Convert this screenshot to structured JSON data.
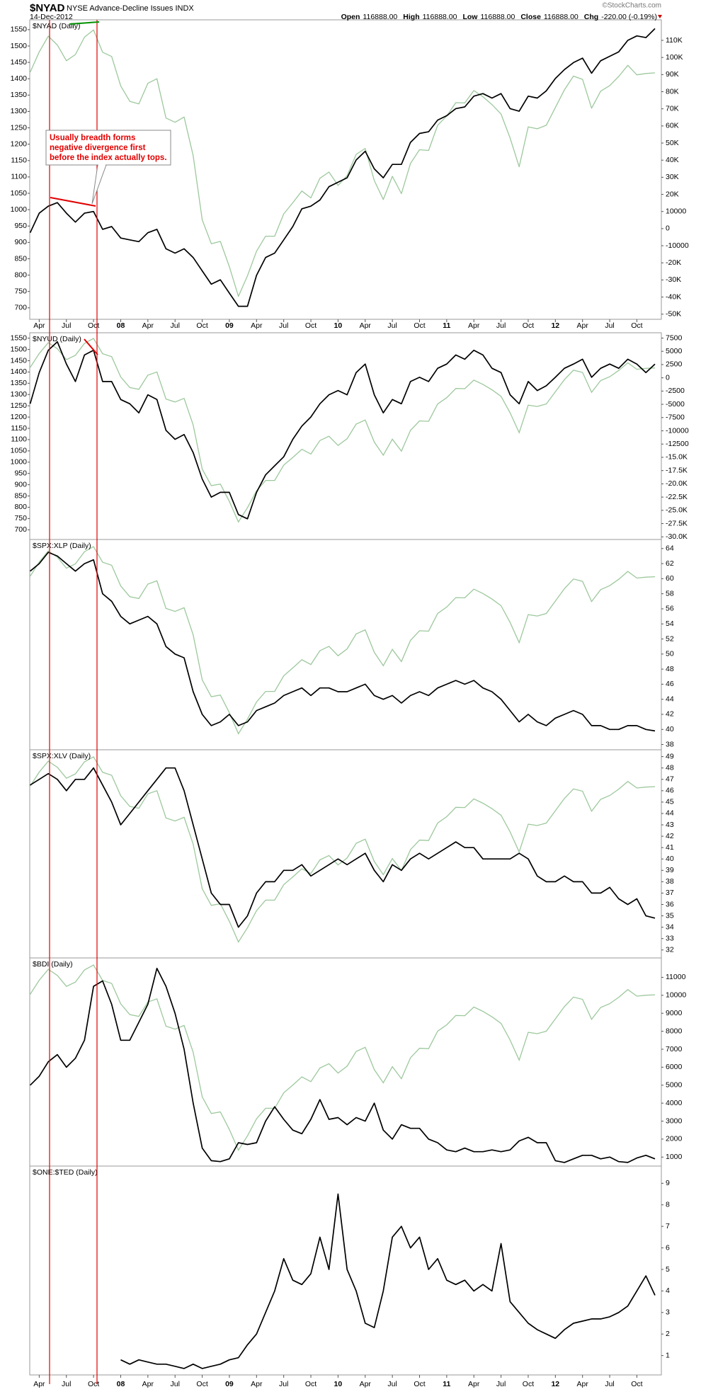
{
  "header": {
    "symbol": "$NYAD",
    "name": "NYSE Advance-Decline Issues INDX",
    "date": "14-Dec-2012",
    "source": "©StockCharts.com",
    "quote": [
      {
        "label": "Open",
        "value": "116888.00"
      },
      {
        "label": "High",
        "value": "116888.00"
      },
      {
        "label": "Low",
        "value": "116888.00"
      },
      {
        "label": "Close",
        "value": "116888.00"
      },
      {
        "label": "Chg",
        "value": "-220.00 (-0.19%)"
      }
    ]
  },
  "annotation": [
    "Usually breadth forms",
    "negative divergence first",
    "before the index actually tops."
  ],
  "chart_data": [
    {
      "type": "line",
      "title": "$NYAD (Daily)",
      "x": [
        "2007-03",
        "2007-04",
        "2007-05",
        "2007-06",
        "2007-07",
        "2007-08",
        "2007-09",
        "2007-10",
        "2007-11",
        "2007-12",
        "2008-01",
        "2008-02",
        "2008-03",
        "2008-04",
        "2008-05",
        "2008-06",
        "2008-07",
        "2008-08",
        "2008-09",
        "2008-10",
        "2008-11",
        "2008-12",
        "2009-01",
        "2009-02",
        "2009-03",
        "2009-04",
        "2009-05",
        "2009-06",
        "2009-07",
        "2009-08",
        "2009-09",
        "2009-10",
        "2009-11",
        "2009-12",
        "2010-01",
        "2010-02",
        "2010-03",
        "2010-04",
        "2010-05",
        "2010-06",
        "2010-07",
        "2010-08",
        "2010-09",
        "2010-10",
        "2010-11",
        "2010-12",
        "2011-01",
        "2011-02",
        "2011-03",
        "2011-04",
        "2011-05",
        "2011-06",
        "2011-07",
        "2011-08",
        "2011-09",
        "2011-10",
        "2011-11",
        "2011-12",
        "2012-01",
        "2012-02",
        "2012-03",
        "2012-04",
        "2012-05",
        "2012-06",
        "2012-07",
        "2012-08",
        "2012-09",
        "2012-10",
        "2012-11",
        "2012-12"
      ],
      "xticks": [
        {
          "value": "2007-04",
          "label": "Apr"
        },
        {
          "value": "2007-07",
          "label": "Jul"
        },
        {
          "value": "2007-10",
          "label": "Oct"
        },
        {
          "value": "2008-01",
          "label": "08"
        },
        {
          "value": "2008-04",
          "label": "Apr"
        },
        {
          "value": "2008-07",
          "label": "Jul"
        },
        {
          "value": "2008-10",
          "label": "Oct"
        },
        {
          "value": "2009-01",
          "label": "09"
        },
        {
          "value": "2009-04",
          "label": "Apr"
        },
        {
          "value": "2009-07",
          "label": "Jul"
        },
        {
          "value": "2009-10",
          "label": "Oct"
        },
        {
          "value": "2010-01",
          "label": "10"
        },
        {
          "value": "2010-04",
          "label": "Apr"
        },
        {
          "value": "2010-07",
          "label": "Jul"
        },
        {
          "value": "2010-10",
          "label": "Oct"
        },
        {
          "value": "2011-01",
          "label": "11"
        },
        {
          "value": "2011-04",
          "label": "Apr"
        },
        {
          "value": "2011-07",
          "label": "Jul"
        },
        {
          "value": "2011-10",
          "label": "Oct"
        },
        {
          "value": "2012-01",
          "label": "12"
        },
        {
          "value": "2012-04",
          "label": "Apr"
        },
        {
          "value": "2012-07",
          "label": "Jul"
        },
        {
          "value": "2012-10",
          "label": "Oct"
        }
      ],
      "ylim": [
        665,
        1580
      ],
      "yticks": [
        700,
        750,
        800,
        850,
        900,
        950,
        1000,
        1050,
        1100,
        1150,
        1200,
        1250,
        1300,
        1350,
        1400,
        1450,
        1500,
        1550
      ],
      "y2lim": [
        -53000,
        122000
      ],
      "y2ticks": [
        {
          "value": -50000,
          "label": "-50K"
        },
        {
          "value": -40000,
          "label": "-40K"
        },
        {
          "value": -30000,
          "label": "-30K"
        },
        {
          "value": -20000,
          "label": "-20K"
        },
        -10000,
        0,
        10000,
        {
          "value": 20000,
          "label": "20K"
        },
        {
          "value": 30000,
          "label": "30K"
        },
        {
          "value": 40000,
          "label": "40K"
        },
        {
          "value": 50000,
          "label": "50K"
        },
        {
          "value": 60000,
          "label": "60K"
        },
        {
          "value": 70000,
          "label": "70K"
        },
        {
          "value": 80000,
          "label": "80K"
        },
        {
          "value": 90000,
          "label": "90K"
        },
        {
          "value": 100000,
          "label": "100K"
        },
        {
          "value": 110000,
          "label": "110K"
        }
      ],
      "series": [
        {
          "color": "#9dc89d",
          "values": [
            1420,
            1482,
            1530,
            1503,
            1455,
            1474,
            1527,
            1549,
            1481,
            1468,
            1378,
            1331,
            1323,
            1386,
            1400,
            1280,
            1267,
            1283,
            1165,
            969,
            896,
            903,
            826,
            735,
            798,
            873,
            919,
            919,
            987,
            1021,
            1057,
            1036,
            1096,
            1115,
            1074,
            1104,
            1169,
            1187,
            1089,
            1031,
            1102,
            1049,
            1141,
            1183,
            1181,
            1258,
            1286,
            1327,
            1326,
            1364,
            1345,
            1321,
            1292,
            1219,
            1131,
            1253,
            1247,
            1258,
            1312,
            1366,
            1408,
            1398,
            1310,
            1362,
            1379,
            1407,
            1441,
            1412,
            1416,
            1418
          ]
        },
        {
          "color": "#000000",
          "axis": "y2",
          "values": [
            -2400,
            9000,
            13100,
            15200,
            9000,
            3800,
            9000,
            10000,
            -400,
            1200,
            -5500,
            -6600,
            -7600,
            -2400,
            -400,
            -11800,
            -14300,
            -11800,
            -16900,
            -24700,
            -32500,
            -29900,
            -37700,
            -45400,
            -45400,
            -27300,
            -16900,
            -14300,
            -6600,
            1200,
            11600,
            13100,
            16700,
            24500,
            27100,
            29700,
            40100,
            45200,
            34900,
            29700,
            37500,
            37500,
            50400,
            55600,
            56600,
            63400,
            66000,
            70100,
            71100,
            77400,
            78900,
            76300,
            78900,
            70100,
            68600,
            77400,
            76300,
            80500,
            87700,
            92900,
            97000,
            99600,
            90800,
            98100,
            100700,
            103300,
            110000,
            112600,
            111600,
            116888
          ]
        }
      ]
    },
    {
      "type": "line",
      "title": "$NYUD (Daily)",
      "ylim": [
        657,
        1574
      ],
      "yticks": [
        700,
        750,
        800,
        850,
        900,
        950,
        1000,
        1050,
        1100,
        1150,
        1200,
        1250,
        1300,
        1350,
        1400,
        1450,
        1500,
        1550
      ],
      "y2lim": [
        -30500,
        8500
      ],
      "y2ticks": [
        {
          "value": -30000,
          "label": "-30.0K"
        },
        {
          "value": -27500,
          "label": "-27.5K"
        },
        {
          "value": -25000,
          "label": "-25.0K"
        },
        {
          "value": -22500,
          "label": "-22.5K"
        },
        {
          "value": -20000,
          "label": "-20.0K"
        },
        {
          "value": -17500,
          "label": "-17.5K"
        },
        {
          "value": -15000,
          "label": "-15.0K"
        },
        -12500,
        -10000,
        -7500,
        -5000,
        -2500,
        0,
        2500,
        5000,
        7500
      ],
      "series": [
        {
          "color": "#000000",
          "axis": "y2",
          "values": [
            -4900,
            1000,
            5200,
            6800,
            2600,
            -700,
            4300,
            5200,
            -700,
            -700,
            -4100,
            -4900,
            -6600,
            -3200,
            -4100,
            -9900,
            -11600,
            -10700,
            -14100,
            -19100,
            -22500,
            -21600,
            -21600,
            -25800,
            -26600,
            -21600,
            -18300,
            -16600,
            -14900,
            -11600,
            -9100,
            -7400,
            -4900,
            -3200,
            -2400,
            -3200,
            1000,
            2600,
            -3200,
            -6600,
            -4100,
            -4900,
            -700,
            100,
            -700,
            1800,
            2600,
            4300,
            3500,
            5200,
            4300,
            1800,
            1000,
            -3200,
            -4900,
            -700,
            -2400,
            -1500,
            100,
            1800,
            2600,
            3500,
            100,
            1800,
            2600,
            1800,
            3500,
            2600,
            1000,
            2600
          ]
        }
      ]
    },
    {
      "type": "line",
      "title": "$SPX:XLP (Daily)",
      "y2lim": [
        37.3,
        65.2
      ],
      "y2ticks": [
        38,
        40,
        42,
        44,
        46,
        48,
        50,
        52,
        54,
        56,
        58,
        60,
        62,
        64
      ],
      "series": [
        {
          "color": "#000000",
          "axis": "y2",
          "values": [
            61,
            62,
            63.5,
            63,
            62,
            61,
            62,
            62.5,
            58,
            57,
            55,
            54,
            54.5,
            55,
            54,
            51,
            50,
            49.5,
            45,
            42,
            40.5,
            41,
            42,
            40.5,
            41,
            42.5,
            43,
            43.5,
            44.5,
            45,
            45.5,
            44.5,
            45.5,
            45.5,
            45,
            45,
            45.5,
            46,
            44.5,
            44,
            44.5,
            43.5,
            44.5,
            45,
            44.5,
            45.5,
            46,
            46.5,
            46,
            46.5,
            45.5,
            45,
            44,
            42.5,
            41,
            42,
            41,
            40.5,
            41.5,
            42,
            42.5,
            42,
            40.5,
            40.5,
            40,
            40,
            40.5,
            40.5,
            40,
            39.8
          ]
        }
      ]
    },
    {
      "type": "line",
      "title": "$SPX:XLV (Daily)",
      "y2lim": [
        31.3,
        49.6
      ],
      "y2ticks": [
        32,
        33,
        34,
        35,
        36,
        37,
        38,
        39,
        40,
        41,
        42,
        43,
        44,
        45,
        46,
        47,
        48,
        49
      ],
      "series": [
        {
          "color": "#000000",
          "axis": "y2",
          "values": [
            46.5,
            47,
            47.5,
            47,
            46,
            47,
            47,
            48,
            46.5,
            45,
            43,
            44,
            45,
            46,
            47,
            48,
            48,
            46,
            43,
            40,
            37,
            36,
            36,
            34,
            35,
            37,
            38,
            38,
            39,
            39,
            39.5,
            38.5,
            39,
            39.5,
            40,
            39.5,
            40,
            40.5,
            39,
            38,
            39.5,
            39,
            40,
            40.5,
            40,
            40.5,
            41,
            41.5,
            41,
            41,
            40,
            40,
            40,
            40,
            40.5,
            40,
            38.5,
            38,
            38,
            38.5,
            38,
            38,
            37,
            37,
            37.5,
            36.5,
            36,
            36.5,
            35,
            34.8
          ]
        }
      ]
    },
    {
      "type": "line",
      "title": "$BDI (Daily)",
      "y2lim": [
        500,
        12080
      ],
      "y2ticks": [
        1000,
        2000,
        3000,
        4000,
        5000,
        6000,
        7000,
        8000,
        9000,
        10000,
        11000
      ],
      "series": [
        {
          "color": "#000000",
          "axis": "y2",
          "values": [
            5000,
            5500,
            6300,
            6700,
            6000,
            6500,
            7500,
            10500,
            10800,
            9500,
            7500,
            7500,
            8500,
            9500,
            11500,
            10500,
            9000,
            7000,
            4000,
            1500,
            800,
            750,
            900,
            1800,
            1700,
            1800,
            3000,
            3800,
            3100,
            2500,
            2300,
            3100,
            4200,
            3100,
            3200,
            2800,
            3200,
            3000,
            4000,
            2500,
            2000,
            2800,
            2600,
            2600,
            2000,
            1800,
            1400,
            1300,
            1500,
            1300,
            1300,
            1400,
            1300,
            1400,
            1900,
            2100,
            1800,
            1800,
            800,
            700,
            900,
            1100,
            1100,
            900,
            1000,
            750,
            700,
            950,
            1100,
            900
          ]
        }
      ]
    },
    {
      "type": "line",
      "title": "$ONE:$TED (Daily)",
      "y2lim": [
        0.1,
        9.8
      ],
      "y2ticks": [
        1,
        2,
        3,
        4,
        5,
        6,
        7,
        8,
        9
      ],
      "series": [
        {
          "color": "#000000",
          "axis": "y2",
          "values": [
            null,
            null,
            null,
            null,
            null,
            null,
            null,
            null,
            null,
            null,
            0.8,
            0.6,
            0.8,
            0.7,
            0.6,
            0.6,
            0.5,
            0.4,
            0.6,
            0.4,
            0.5,
            0.6,
            0.8,
            0.9,
            1.5,
            2,
            3,
            4,
            5.5,
            4.5,
            4.3,
            4.8,
            6.5,
            5,
            8.5,
            5,
            4,
            2.5,
            2.3,
            4,
            6.5,
            7,
            6,
            6.5,
            5,
            5.5,
            4.5,
            4.3,
            4.5,
            4,
            4.3,
            4,
            6.2,
            3.5,
            3,
            2.5,
            2.2,
            2,
            1.8,
            2.2,
            2.5,
            2.6,
            2.7,
            2.7,
            2.8,
            3,
            3.3,
            4,
            4.7,
            3.8
          ]
        }
      ]
    }
  ]
}
